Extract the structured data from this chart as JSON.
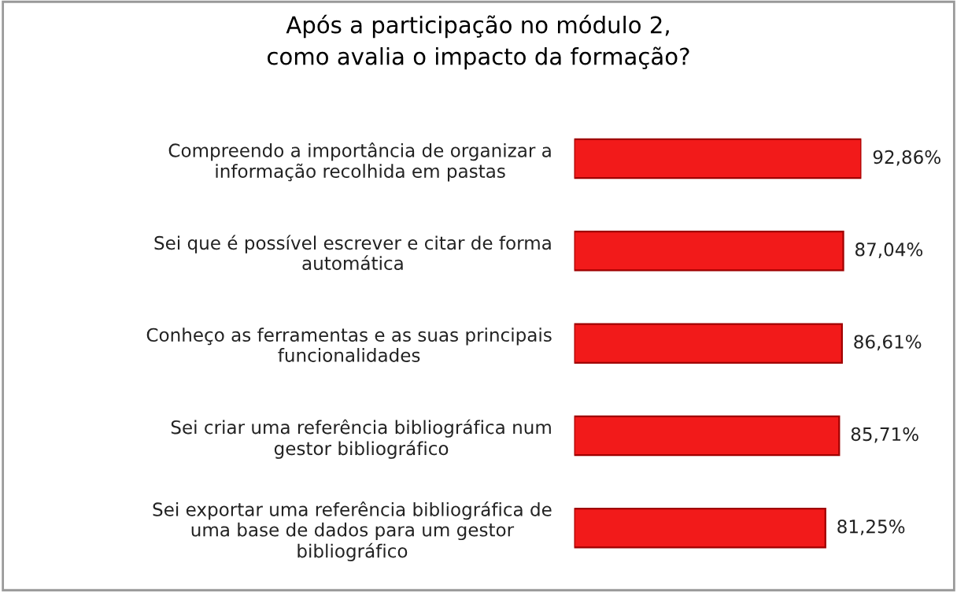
{
  "chart_data": {
    "type": "bar",
    "orientation": "horizontal",
    "title": "Após a participação no módulo 2,\ncomo avalia o impacto da formação?",
    "categories": [
      "Compreendo a importância de organizar a informação recolhida em pastas",
      "Sei que é possível escrever e citar de forma automática",
      "Conheço as ferramentas e as suas principais funcionalidades",
      "Sei criar uma referência bibliográfica num gestor bibliográfico",
      "Sei exportar uma referência bibliográfica de uma base de dados para um gestor bibliográfico"
    ],
    "values": [
      92.86,
      87.04,
      86.61,
      85.71,
      81.25
    ],
    "value_labels": [
      "92,86%",
      "87,04%",
      "86,61%",
      "85,71%",
      "81,25%"
    ],
    "color": "#f21a1a",
    "grid": false,
    "legend": false
  }
}
